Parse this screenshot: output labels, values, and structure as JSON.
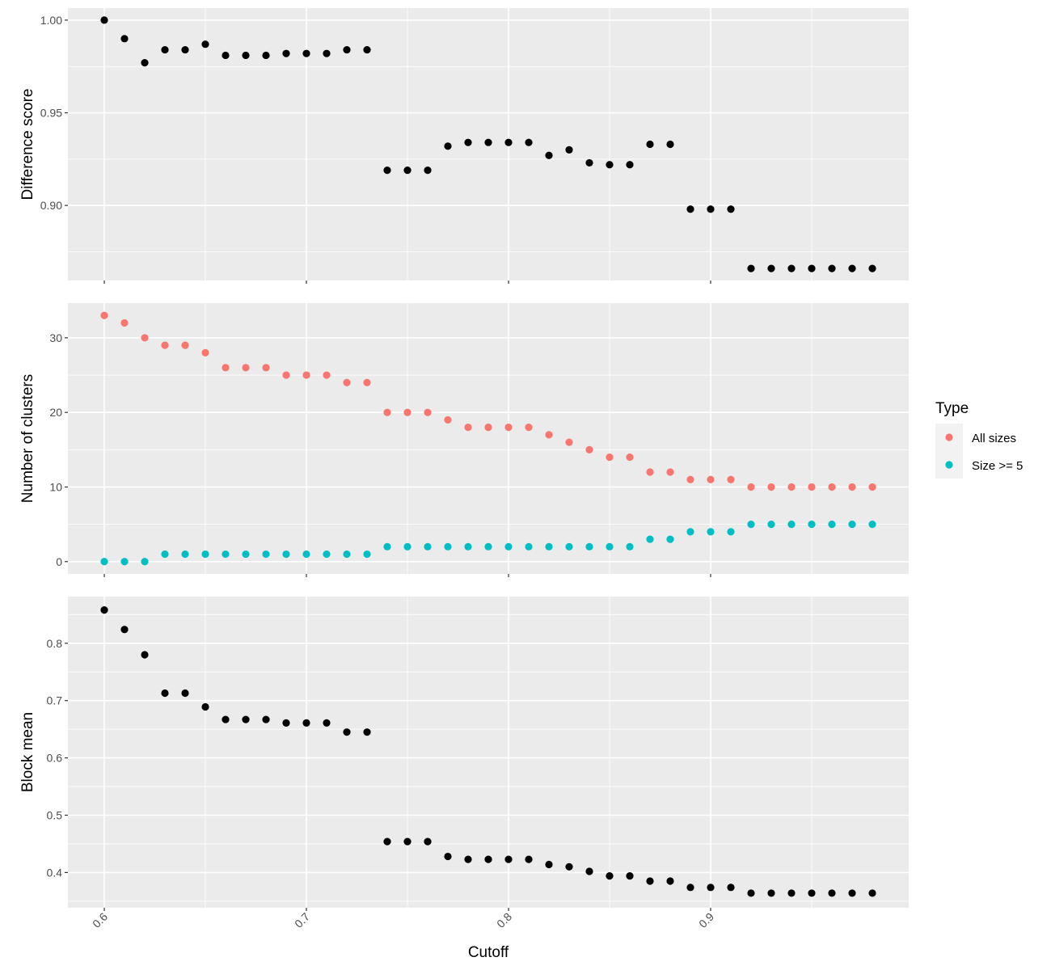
{
  "chart_data": {
    "type": "scatter",
    "x": [
      0.6,
      0.61,
      0.62,
      0.63,
      0.64,
      0.65,
      0.66,
      0.67,
      0.68,
      0.69,
      0.7,
      0.71,
      0.72,
      0.73,
      0.74,
      0.75,
      0.76,
      0.77,
      0.78,
      0.79,
      0.8,
      0.81,
      0.82,
      0.83,
      0.84,
      0.85,
      0.86,
      0.87,
      0.88,
      0.89,
      0.9,
      0.91,
      0.92,
      0.93,
      0.94,
      0.95,
      0.96,
      0.97,
      0.98
    ],
    "xlabel": "Cutoff",
    "xlim": [
      0.582,
      0.998
    ],
    "x_ticks": [
      "0.6",
      "0.7",
      "0.8",
      "0.9"
    ],
    "x_tick_values": [
      0.6,
      0.7,
      0.8,
      0.9
    ],
    "grid": true,
    "legend_placement": "right",
    "panels": [
      {
        "ylabel": "Difference score",
        "ylim": [
          0.8595,
          1.0065
        ],
        "y_ticks": [
          "0.90",
          "0.95",
          "1.00"
        ],
        "y_tick_values": [
          0.9,
          0.95,
          1.0
        ],
        "series": [
          {
            "color": "#000000",
            "values": [
              1.0,
              0.99,
              0.977,
              0.984,
              0.984,
              0.987,
              0.981,
              0.981,
              0.981,
              0.982,
              0.982,
              0.982,
              0.984,
              0.984,
              0.919,
              0.919,
              0.919,
              0.932,
              0.934,
              0.934,
              0.934,
              0.934,
              0.927,
              0.93,
              0.923,
              0.922,
              0.922,
              0.933,
              0.933,
              0.898,
              0.898,
              0.898,
              0.866,
              0.866,
              0.866,
              0.866,
              0.866,
              0.866,
              0.866
            ]
          }
        ]
      },
      {
        "ylabel": "Number of clusters",
        "ylim": [
          -1.65,
          34.65
        ],
        "y_ticks": [
          "0",
          "10",
          "20",
          "30"
        ],
        "y_tick_values": [
          0,
          10,
          20,
          30
        ],
        "series": [
          {
            "name": "All sizes",
            "color": "#F8766D",
            "values": [
              33,
              32,
              30,
              29,
              29,
              28,
              26,
              26,
              26,
              25,
              25,
              25,
              24,
              24,
              20,
              20,
              20,
              19,
              18,
              18,
              18,
              18,
              17,
              16,
              15,
              14,
              14,
              12,
              12,
              11,
              11,
              11,
              10,
              10,
              10,
              10,
              10,
              10,
              10
            ]
          },
          {
            "name": "Size >= 5",
            "color": "#00BFC4",
            "values": [
              0,
              0,
              0,
              1,
              1,
              1,
              1,
              1,
              1,
              1,
              1,
              1,
              1,
              1,
              2,
              2,
              2,
              2,
              2,
              2,
              2,
              2,
              2,
              2,
              2,
              2,
              2,
              3,
              3,
              4,
              4,
              4,
              5,
              5,
              5,
              5,
              5,
              5,
              5
            ]
          }
        ]
      },
      {
        "ylabel": "Block mean",
        "ylim": [
          0.3385,
          0.8815
        ],
        "y_ticks": [
          "0.4",
          "0.5",
          "0.6",
          "0.7",
          "0.8"
        ],
        "y_tick_values": [
          0.4,
          0.5,
          0.6,
          0.7,
          0.8
        ],
        "series": [
          {
            "color": "#000000",
            "values": [
              0.858,
              0.824,
              0.78,
              0.713,
              0.713,
              0.689,
              0.667,
              0.667,
              0.667,
              0.661,
              0.661,
              0.661,
              0.645,
              0.645,
              0.454,
              0.454,
              0.454,
              0.428,
              0.423,
              0.423,
              0.423,
              0.423,
              0.414,
              0.41,
              0.402,
              0.394,
              0.394,
              0.385,
              0.385,
              0.374,
              0.374,
              0.374,
              0.364,
              0.364,
              0.364,
              0.364,
              0.364,
              0.364,
              0.364
            ]
          }
        ]
      }
    ],
    "legend": {
      "title": "Type",
      "entries": [
        {
          "label": "All sizes",
          "color": "#F8766D"
        },
        {
          "label": "Size >= 5",
          "color": "#00BFC4"
        }
      ]
    }
  }
}
